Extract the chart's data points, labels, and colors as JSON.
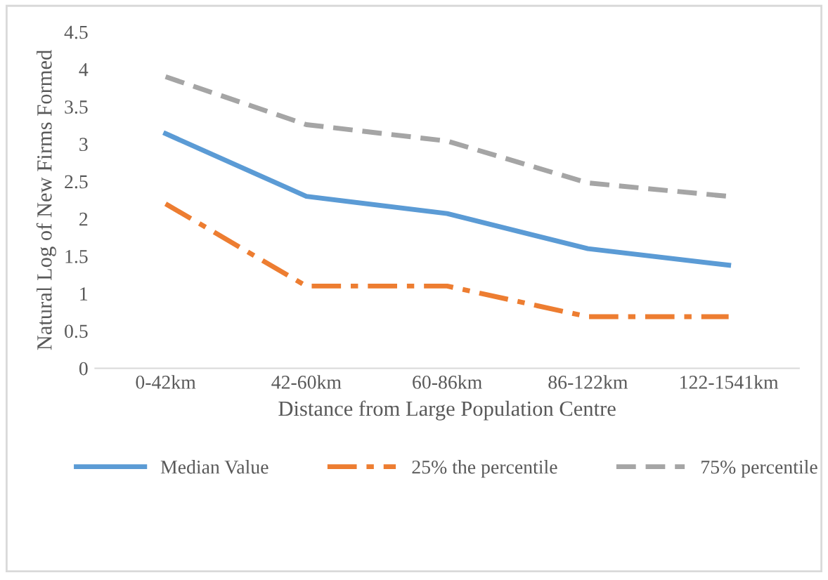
{
  "chart_data": {
    "type": "line",
    "xlabel": "Distance from Large Population Centre",
    "ylabel": "Natural Log of New Firms Formed",
    "categories": [
      "0-42km",
      "42-60km",
      "60-86km",
      "86-122km",
      "122-1541km"
    ],
    "series": [
      {
        "name": "Median Value",
        "color": "#5b9bd5",
        "values": [
          3.14,
          2.3,
          2.07,
          1.6,
          1.38
        ],
        "line_style": "solid"
      },
      {
        "name": "25% the percentile",
        "color": "#ed7d31",
        "values": [
          2.2,
          1.1,
          1.1,
          0.69,
          0.69
        ],
        "line_style": "dashdot"
      },
      {
        "name": "75% percentile",
        "color": "#a5a5a5",
        "values": [
          3.9,
          3.26,
          3.04,
          2.48,
          2.3
        ],
        "line_style": "dashed"
      }
    ],
    "ylim": [
      0,
      4.5
    ],
    "yticks": [
      0,
      0.5,
      1,
      1.5,
      2,
      2.5,
      3,
      3.5,
      4,
      4.5
    ],
    "grid": false,
    "legend": "bottom",
    "marker": "none"
  }
}
